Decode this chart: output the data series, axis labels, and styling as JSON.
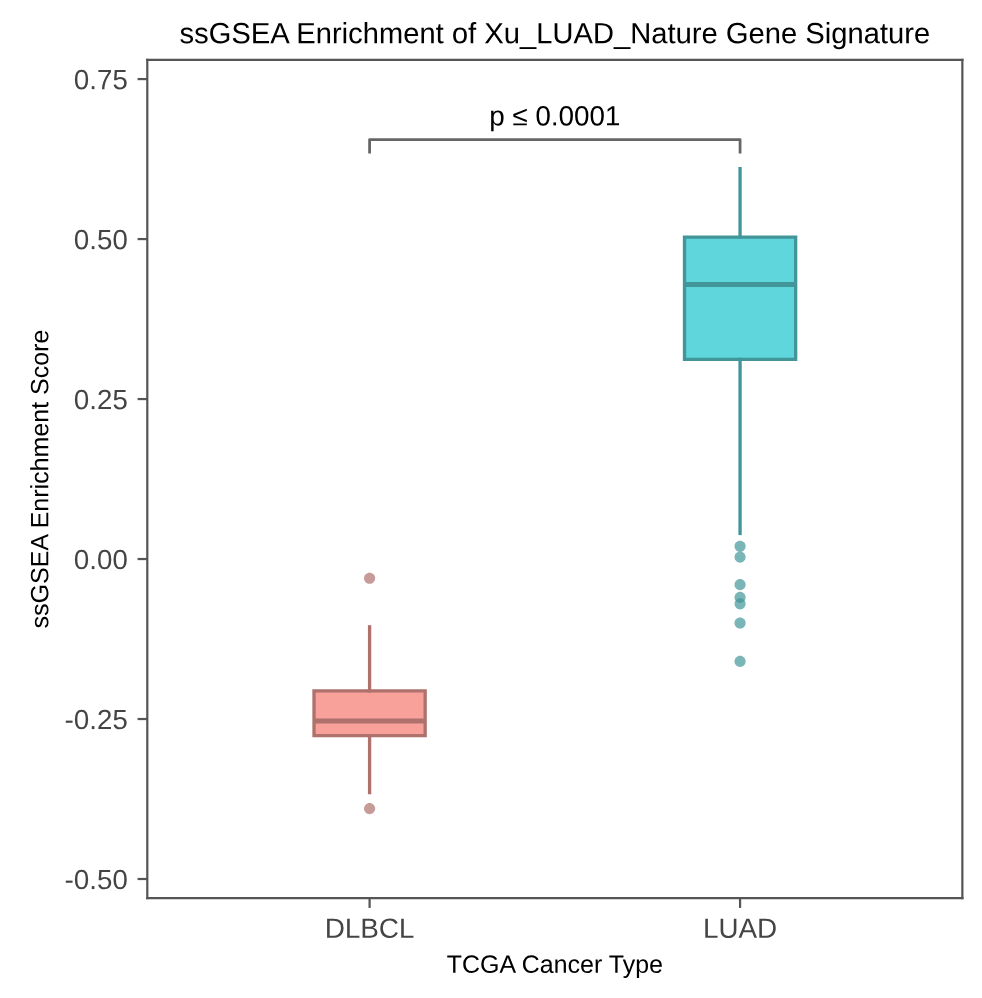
{
  "chart_data": {
    "type": "box",
    "title": "ssGSEA Enrichment of Xu_LUAD_Nature Gene Signature",
    "xlabel": "TCGA Cancer Type",
    "ylabel": "ssGSEA Enrichment Score",
    "categories": [
      "DLBCL",
      "LUAD"
    ],
    "ylim": [
      -0.53,
      0.78
    ],
    "yticks": [
      {
        "value": -0.5,
        "label": "-0.50"
      },
      {
        "value": -0.25,
        "label": "-0.25"
      },
      {
        "value": 0,
        "label": "0.00"
      },
      {
        "value": 0.25,
        "label": "0.25"
      },
      {
        "value": 0.5,
        "label": "0.50"
      },
      {
        "value": 0.75,
        "label": "0.75"
      }
    ],
    "grid": false,
    "legend": false,
    "colors": [
      "#f8a19b",
      "#5fd6db"
    ],
    "boxes": [
      {
        "low": -0.365,
        "q1": -0.276,
        "median": -0.253,
        "q3": -0.206,
        "high": -0.106,
        "outliers": [
          -0.03,
          -0.39
        ]
      },
      {
        "low": 0.04,
        "q1": 0.312,
        "median": 0.429,
        "q3": 0.503,
        "high": 0.61,
        "outliers": [
          0.02,
          0.003,
          -0.04,
          -0.06,
          -0.07,
          -0.1,
          -0.16
        ]
      }
    ],
    "annotations": [
      "p ≤ 0.0001"
    ]
  }
}
